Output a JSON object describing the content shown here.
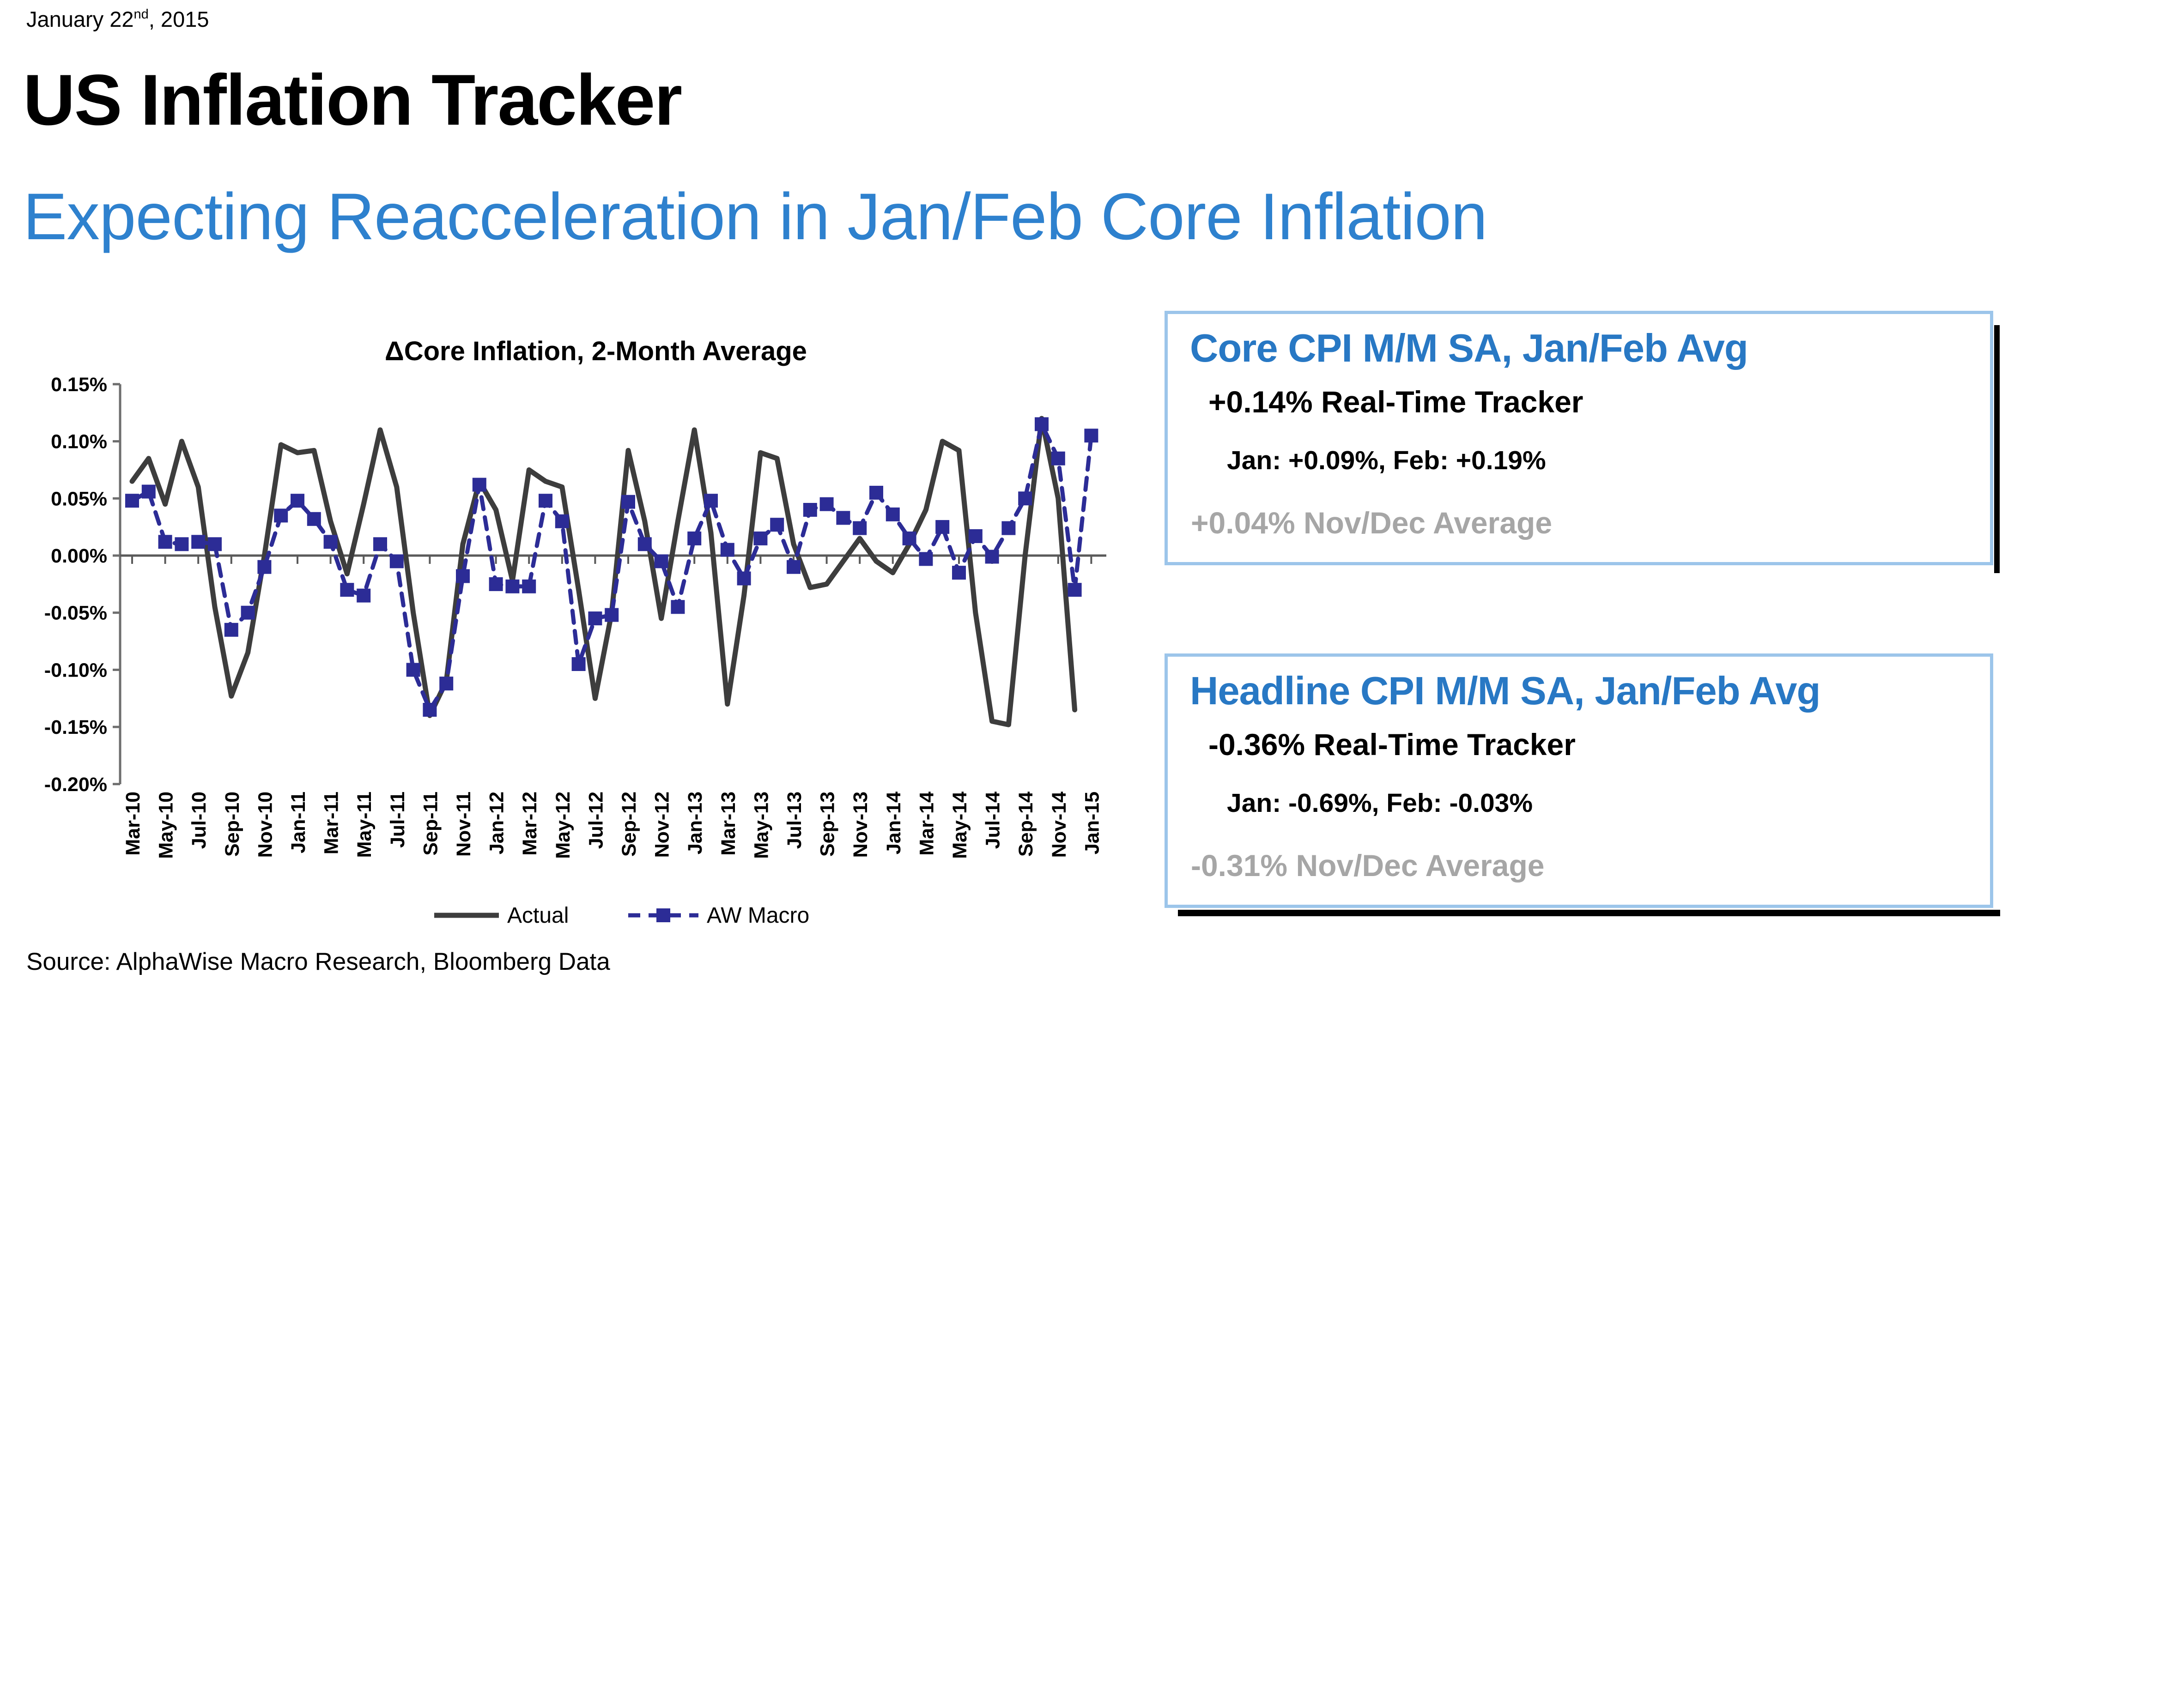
{
  "page": {
    "date_prefix": "January 22",
    "date_superscript": "nd",
    "date_suffix": ", 2015",
    "title": "US Inflation Tracker",
    "subtitle": "Expecting Reacceleration in Jan/Feb Core Inflation",
    "source": "Source: AlphaWise Macro Research, Bloomberg Data"
  },
  "cards": [
    {
      "title": "Core CPI M/M SA, Jan/Feb Avg",
      "tracker": "+0.14% Real-Time Tracker",
      "detail": "Jan: +0.09%, Feb: +0.19%",
      "prior": "+0.04% Nov/Dec Average",
      "title_color": "#2878C4",
      "border_color": "#9CC5EA"
    },
    {
      "title": "Headline CPI M/M SA, Jan/Feb Avg",
      "tracker": "-0.36% Real-Time Tracker",
      "detail": "Jan: -0.69%, Feb: -0.03%",
      "prior": "-0.31% Nov/Dec Average",
      "title_color": "#2878C4",
      "border_color": "#9CC5EA"
    }
  ],
  "chart_data": {
    "type": "line",
    "title": "ΔCore Inflation, 2-Month Average",
    "xlabel": "",
    "ylabel": "",
    "ylim": [
      -0.2,
      0.15
    ],
    "grid": false,
    "legend_position": "bottom",
    "y_ticks": [
      {
        "value": 0.15,
        "label": "0.15%"
      },
      {
        "value": 0.1,
        "label": "0.10%"
      },
      {
        "value": 0.05,
        "label": "0.05%"
      },
      {
        "value": 0.0,
        "label": "0.00%"
      },
      {
        "value": -0.05,
        "label": "-0.05%"
      },
      {
        "value": -0.1,
        "label": "-0.10%"
      },
      {
        "value": -0.15,
        "label": "-0.15%"
      },
      {
        "value": -0.2,
        "label": "-0.20%"
      }
    ],
    "x_tick_every": 2,
    "categories": [
      "Mar-10",
      "Apr-10",
      "May-10",
      "Jun-10",
      "Jul-10",
      "Aug-10",
      "Sep-10",
      "Oct-10",
      "Nov-10",
      "Dec-10",
      "Jan-11",
      "Feb-11",
      "Mar-11",
      "Apr-11",
      "May-11",
      "Jun-11",
      "Jul-11",
      "Aug-11",
      "Sep-11",
      "Oct-11",
      "Nov-11",
      "Dec-11",
      "Jan-12",
      "Feb-12",
      "Mar-12",
      "Apr-12",
      "May-12",
      "Jun-12",
      "Jul-12",
      "Aug-12",
      "Sep-12",
      "Oct-12",
      "Nov-12",
      "Dec-12",
      "Jan-13",
      "Feb-13",
      "Mar-13",
      "Apr-13",
      "May-13",
      "Jun-13",
      "Jul-13",
      "Aug-13",
      "Sep-13",
      "Oct-13",
      "Nov-13",
      "Dec-13",
      "Jan-14",
      "Feb-14",
      "Mar-14",
      "Apr-14",
      "May-14",
      "Jun-14",
      "Jul-14",
      "Aug-14",
      "Sep-14",
      "Oct-14",
      "Nov-14",
      "Dec-14",
      "Jan-15"
    ],
    "series": [
      {
        "name": "Actual",
        "color": "#3D3D3D",
        "style": "solid",
        "marker": "none",
        "values": [
          0.065,
          0.085,
          0.045,
          0.1,
          0.06,
          -0.045,
          -0.123,
          -0.085,
          0.0,
          0.097,
          0.09,
          0.092,
          0.03,
          -0.016,
          0.045,
          0.11,
          0.06,
          -0.05,
          -0.14,
          -0.11,
          0.01,
          0.065,
          0.04,
          -0.022,
          0.075,
          0.065,
          0.06,
          -0.03,
          -0.125,
          -0.05,
          0.092,
          0.03,
          -0.055,
          0.03,
          0.11,
          0.02,
          -0.13,
          -0.035,
          0.09,
          0.085,
          0.01,
          -0.028,
          -0.025,
          -0.005,
          0.015,
          -0.005,
          -0.015,
          0.01,
          0.04,
          0.1,
          0.092,
          -0.05,
          -0.145,
          -0.148,
          0.0,
          0.12,
          0.05,
          -0.135,
          null
        ]
      },
      {
        "name": "AW Macro",
        "color": "#2C2C96",
        "style": "dashed",
        "marker": "square",
        "values": [
          0.048,
          0.056,
          0.012,
          0.01,
          0.012,
          0.01,
          -0.065,
          -0.05,
          -0.01,
          0.035,
          0.048,
          0.032,
          0.012,
          -0.03,
          -0.035,
          0.01,
          -0.005,
          -0.1,
          -0.135,
          -0.112,
          -0.018,
          0.062,
          -0.025,
          -0.027,
          -0.027,
          0.048,
          0.03,
          -0.095,
          -0.055,
          -0.052,
          0.047,
          0.01,
          -0.005,
          -0.045,
          0.015,
          0.048,
          0.005,
          -0.02,
          0.015,
          0.027,
          -0.01,
          0.04,
          0.045,
          0.033,
          0.024,
          0.055,
          0.036,
          0.015,
          -0.003,
          0.025,
          -0.015,
          0.017,
          -0.001,
          0.024,
          0.05,
          0.115,
          0.085,
          -0.03,
          0.105
        ]
      }
    ]
  }
}
